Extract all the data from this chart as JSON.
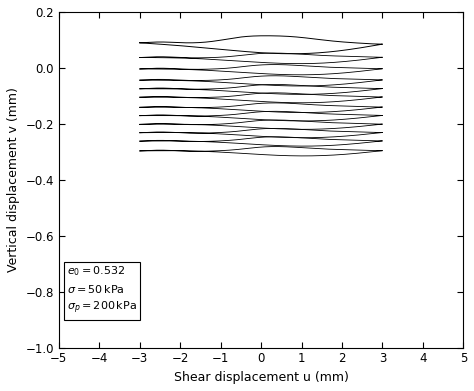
{
  "title": "",
  "xlabel": "Shear displacement u (mm)",
  "ylabel": "Vertical displacement v (mm)",
  "xlim": [
    -5,
    5
  ],
  "ylim": [
    -1.0,
    0.2
  ],
  "xticks": [
    -5,
    -4,
    -3,
    -2,
    -1,
    0,
    1,
    2,
    3,
    4,
    5
  ],
  "yticks": [
    -1.0,
    -0.8,
    -0.6,
    -0.4,
    -0.2,
    0.0,
    0.2
  ],
  "line_color": "#000000",
  "background_color": "#ffffff",
  "n_cycles": 12,
  "u_max": 3.0,
  "u_min": -3.0,
  "figsize": [
    4.74,
    3.91
  ],
  "dpi": 100,
  "loop_centers": [
    0.06,
    0.02,
    -0.02,
    -0.06,
    -0.09,
    -0.12,
    -0.155,
    -0.185,
    -0.215,
    -0.245,
    -0.275,
    -0.31
  ],
  "loop_heights": [
    0.055,
    0.03,
    0.028,
    0.028,
    0.026,
    0.026,
    0.024,
    0.024,
    0.022,
    0.022,
    0.022,
    0.022
  ]
}
